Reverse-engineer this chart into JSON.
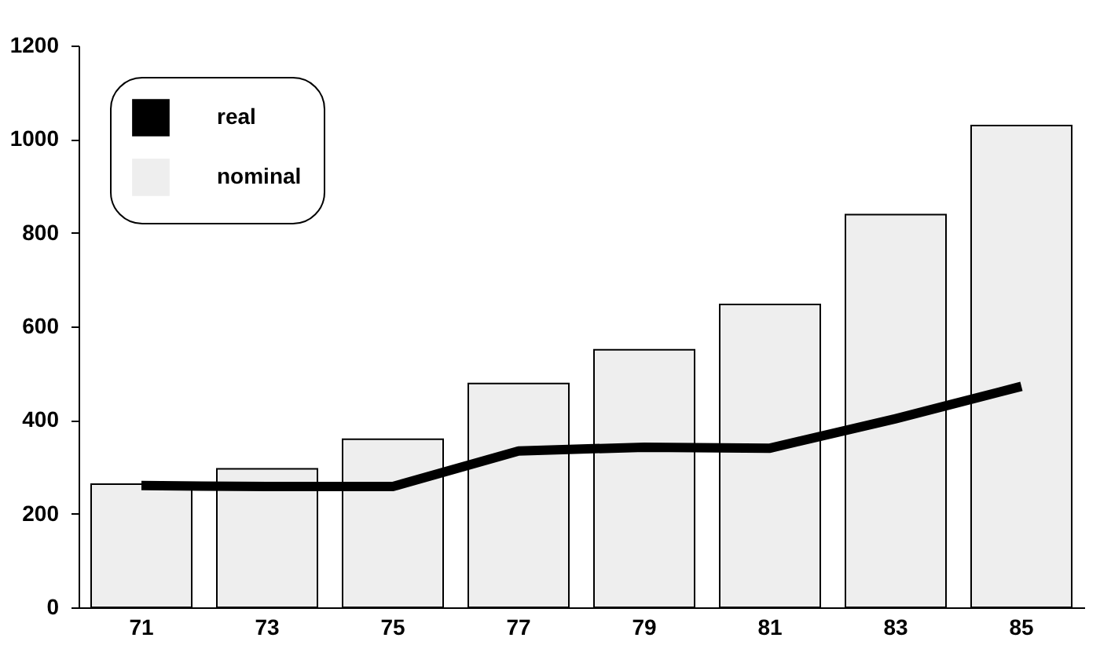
{
  "chart_data": {
    "type": "bar",
    "categories": [
      "71",
      "73",
      "75",
      "77",
      "79",
      "81",
      "83",
      "85"
    ],
    "series": [
      {
        "name": "real",
        "type": "line",
        "color": "#000000",
        "values": [
          260,
          258,
          258,
          334,
          342,
          340,
          403,
          472
        ]
      },
      {
        "name": "nominal",
        "color": "#eeeeee",
        "values": [
          263,
          296,
          359,
          478,
          550,
          647,
          839,
          1029
        ]
      }
    ],
    "ylim": [
      0,
      1200
    ],
    "yticks": [
      0,
      200,
      400,
      600,
      800,
      1000,
      1200
    ],
    "grid": false,
    "legend": "top left",
    "marker": "none",
    "line_style": "solid"
  }
}
